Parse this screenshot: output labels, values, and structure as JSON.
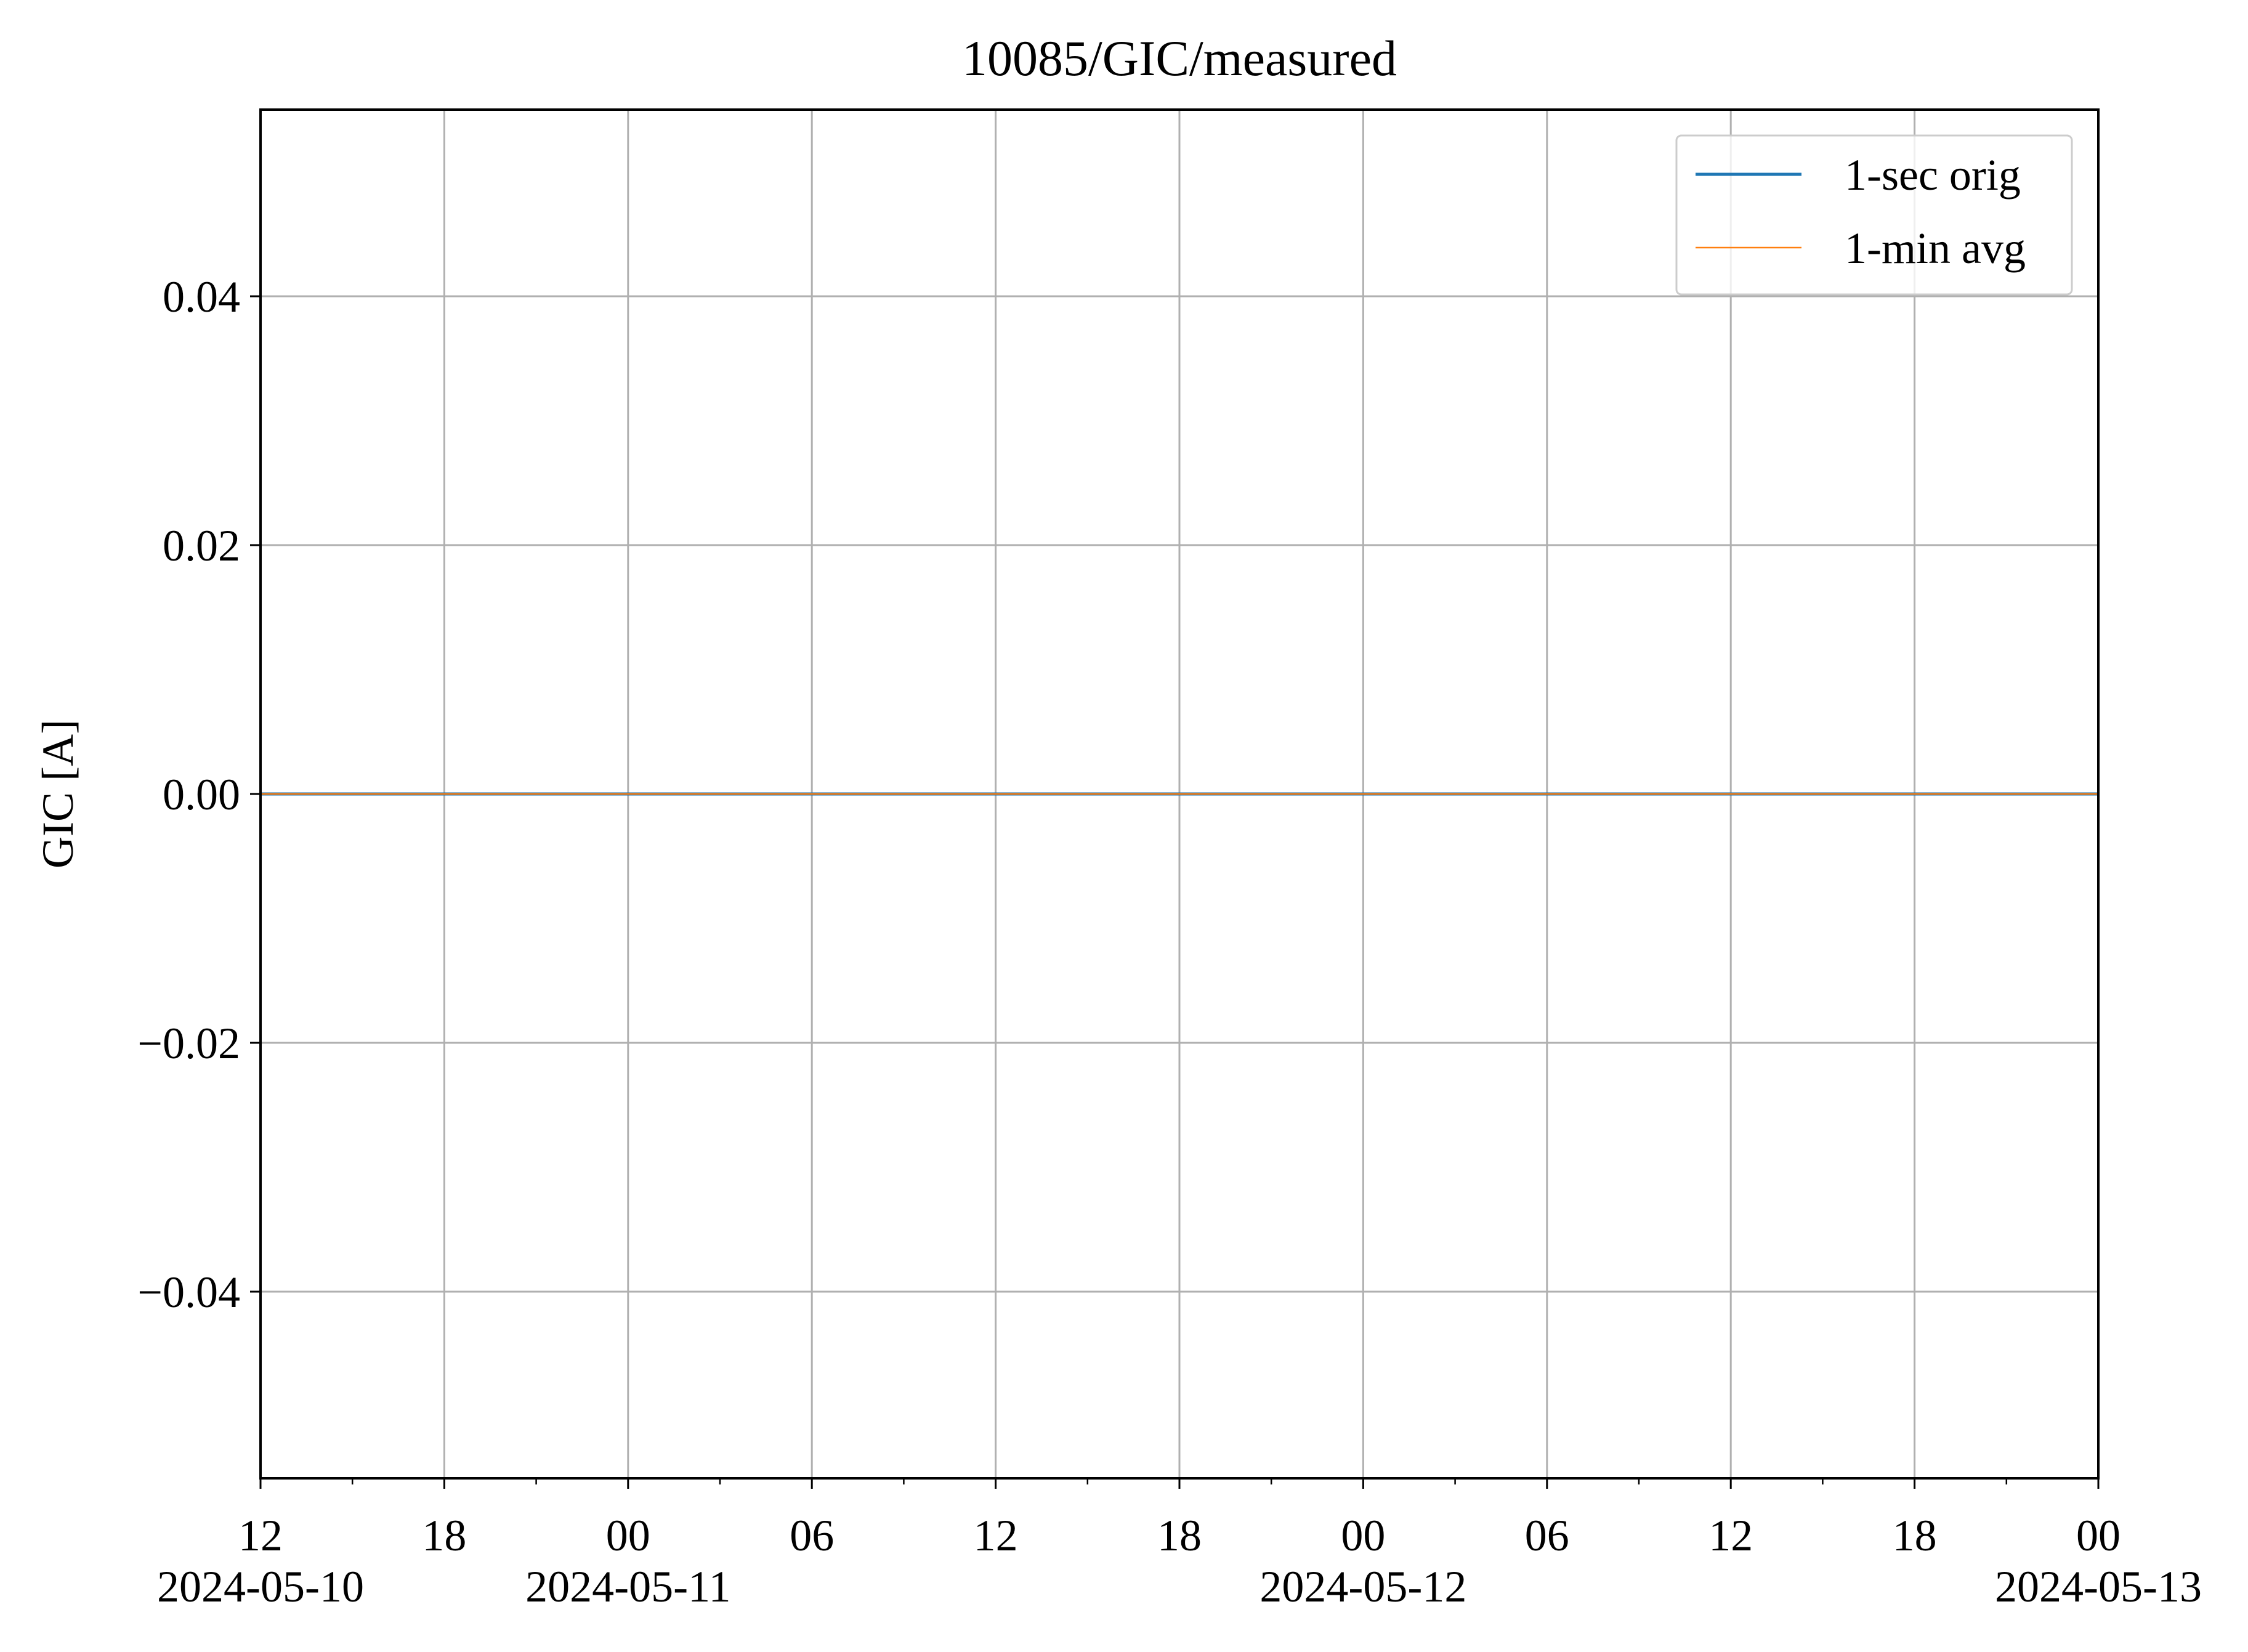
{
  "chart_data": {
    "type": "line",
    "title": "10085/GIC/measured",
    "xlabel": "",
    "ylabel": "GIC [A]",
    "x_range": [
      "2024-05-10 12:00",
      "2024-05-13 00:00"
    ],
    "ylim": [
      -0.055,
      0.055
    ],
    "y_ticks": [
      -0.04,
      -0.02,
      0.0,
      0.02,
      0.04
    ],
    "y_tick_labels": [
      "−0.04",
      "−0.02",
      "0.00",
      "0.02",
      "0.04"
    ],
    "x_ticks": [
      {
        "time": "2024-05-10 12:00",
        "label": "12",
        "date": "2024-05-10"
      },
      {
        "time": "2024-05-10 18:00",
        "label": "18",
        "date": ""
      },
      {
        "time": "2024-05-11 00:00",
        "label": "00",
        "date": "2024-05-11"
      },
      {
        "time": "2024-05-11 06:00",
        "label": "06",
        "date": ""
      },
      {
        "time": "2024-05-11 12:00",
        "label": "12",
        "date": ""
      },
      {
        "time": "2024-05-11 18:00",
        "label": "18",
        "date": ""
      },
      {
        "time": "2024-05-12 00:00",
        "label": "00",
        "date": "2024-05-12"
      },
      {
        "time": "2024-05-12 06:00",
        "label": "06",
        "date": ""
      },
      {
        "time": "2024-05-12 12:00",
        "label": "12",
        "date": ""
      },
      {
        "time": "2024-05-12 18:00",
        "label": "18",
        "date": ""
      },
      {
        "time": "2024-05-13 00:00",
        "label": "00",
        "date": "2024-05-13"
      }
    ],
    "grid": true,
    "legend_position": "top-right",
    "series": [
      {
        "name": "1-sec orig",
        "color": "#1f77b4",
        "x": [
          "2024-05-10 12:00",
          "2024-05-13 00:00"
        ],
        "y": [
          0.0,
          0.0
        ]
      },
      {
        "name": "1-min avg",
        "color": "#ff7f0e",
        "x": [
          "2024-05-10 12:00",
          "2024-05-13 00:00"
        ],
        "y": [
          0.0,
          0.0
        ]
      }
    ]
  }
}
